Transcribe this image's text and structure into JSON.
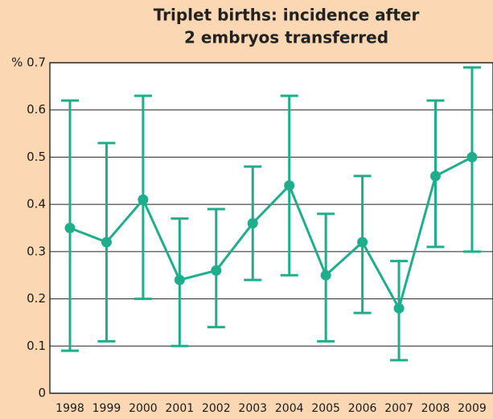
{
  "chart_data": {
    "type": "line",
    "title": [
      "Triplet births: incidence after",
      "2 embryos transferred"
    ],
    "categories": [
      "1998",
      "1999",
      "2000",
      "2001",
      "2002",
      "2003",
      "2004",
      "2005",
      "2006",
      "2007",
      "2008",
      "2009"
    ],
    "series": [
      {
        "color": "#1fae8b",
        "values": [
          0.35,
          0.32,
          0.41,
          0.24,
          0.26,
          0.36,
          0.44,
          0.25,
          0.32,
          0.18,
          0.46,
          0.5
        ],
        "lower": [
          0.09,
          0.11,
          0.2,
          0.1,
          0.14,
          0.24,
          0.25,
          0.11,
          0.17,
          0.07,
          0.31,
          0.3
        ],
        "upper": [
          0.62,
          0.53,
          0.63,
          0.37,
          0.39,
          0.48,
          0.63,
          0.38,
          0.46,
          0.28,
          0.62,
          0.69
        ]
      }
    ],
    "ylim": [
      0,
      0.7
    ],
    "yticks": [
      0,
      0.1,
      0.2,
      0.3,
      0.4,
      0.5,
      0.6,
      {
        "value": 0.7,
        "label": "% 0.7"
      }
    ],
    "grid": true
  }
}
